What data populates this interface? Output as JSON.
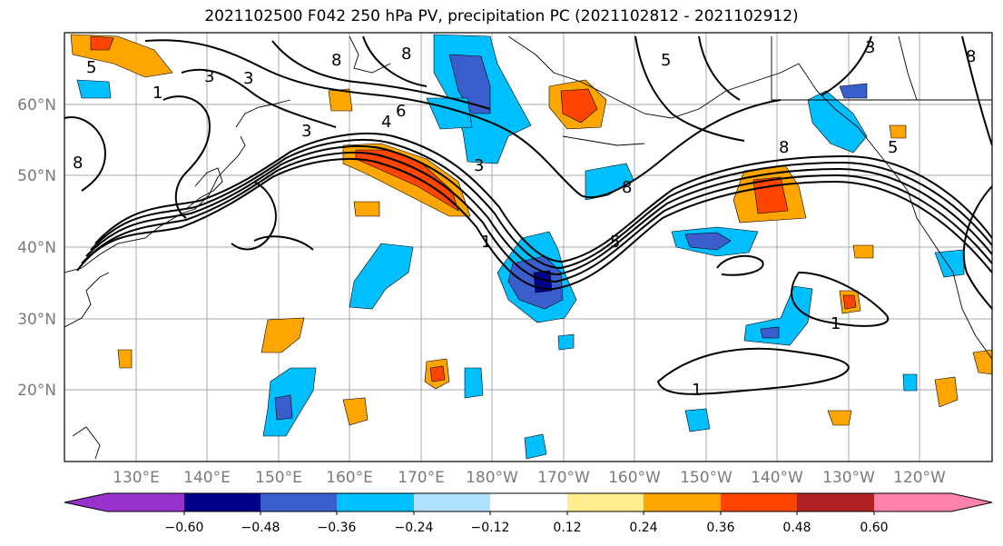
{
  "title": "2021102500 F042 250 hPa PV, precipitation PC (2021102812 - 2021102912)",
  "map": {
    "longitude_labels": [
      "130°E",
      "140°E",
      "150°E",
      "160°E",
      "170°E",
      "180°W",
      "170°W",
      "160°W",
      "150°W",
      "140°W",
      "130°W",
      "120°W"
    ],
    "latitude_labels": [
      "60°N",
      "50°N",
      "40°N",
      "30°N",
      "20°N"
    ],
    "contour_labels": [
      "5",
      "3",
      "3",
      "1",
      "8",
      "8",
      "6",
      "4",
      "8",
      "5",
      "3",
      "8",
      "8",
      "5",
      "3",
      "1",
      "1",
      "1",
      "5",
      "3",
      "8"
    ],
    "negative_color": "#00bfff",
    "positive_color": "#ffa500"
  },
  "colorbar": {
    "colors": [
      "#9932cc",
      "#00008b",
      "#3a5fcd",
      "#00bfff",
      "#b0e2ff",
      "#ffffff",
      "#ffec8b",
      "#ffa500",
      "#ff4500",
      "#b22222",
      "#ff82ab"
    ],
    "tick_labels": [
      "−0.60",
      "−0.48",
      "−0.36",
      "−0.24",
      "−0.12",
      "0.12",
      "0.24",
      "0.36",
      "0.48",
      "0.60"
    ]
  }
}
